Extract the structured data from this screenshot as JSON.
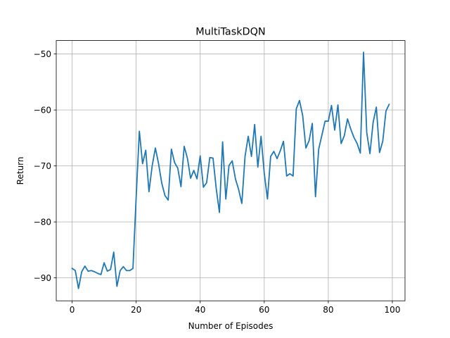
{
  "chart_data": {
    "type": "line",
    "title": "MultiTaskDQN",
    "xlabel": "Number of Episodes",
    "ylabel": "Return",
    "xlim": [
      -4.95,
      103.95
    ],
    "ylim": [
      -94.1,
      -47.6
    ],
    "xticks": [
      0,
      20,
      40,
      60,
      80,
      100
    ],
    "yticks": [
      -90,
      -80,
      -70,
      -60,
      -50
    ],
    "grid": true,
    "line_color": "#1f77b4",
    "series": [
      {
        "x": [
          0,
          1,
          2,
          3,
          4,
          5,
          6,
          7,
          8,
          9,
          10,
          11,
          12,
          13,
          14,
          15,
          16,
          17,
          18,
          19,
          20,
          21,
          22,
          23,
          24,
          25,
          26,
          27,
          28,
          29,
          30,
          31,
          32,
          33,
          34,
          35,
          36,
          37,
          38,
          39,
          40,
          41,
          42,
          43,
          44,
          45,
          46,
          47,
          48,
          49,
          50,
          51,
          52,
          53,
          54,
          55,
          56,
          57,
          58,
          59,
          60,
          61,
          62,
          63,
          64,
          65,
          66,
          67,
          68,
          69,
          70,
          71,
          72,
          73,
          74,
          75,
          76,
          77,
          78,
          79,
          80,
          81,
          82,
          83,
          84,
          85,
          86,
          87,
          88,
          89,
          90,
          91,
          92,
          93,
          94,
          95,
          96,
          97,
          98,
          99
        ],
        "y": [
          -88.3,
          -88.7,
          -91.9,
          -88.9,
          -87.9,
          -88.8,
          -88.7,
          -88.9,
          -89.2,
          -89.4,
          -87.3,
          -88.8,
          -88.5,
          -85.4,
          -91.5,
          -88.7,
          -88.0,
          -88.7,
          -88.7,
          -88.3,
          -75.6,
          -63.8,
          -69.6,
          -67.2,
          -74.6,
          -70.0,
          -66.8,
          -69.6,
          -73.1,
          -75.3,
          -76.1,
          -67.0,
          -69.4,
          -70.4,
          -73.7,
          -66.5,
          -68.6,
          -72.2,
          -70.8,
          -72.3,
          -68.2,
          -73.8,
          -73.0,
          -68.5,
          -68.6,
          -74.0,
          -78.3,
          -65.7,
          -75.9,
          -69.9,
          -69.1,
          -72.3,
          -74.2,
          -76.7,
          -68.3,
          -64.7,
          -68.3,
          -62.6,
          -70.2,
          -64.7,
          -71.3,
          -75.9,
          -68.3,
          -67.4,
          -68.7,
          -67.3,
          -65.6,
          -71.8,
          -71.4,
          -71.8,
          -59.8,
          -58.3,
          -61.0,
          -66.8,
          -65.5,
          -62.4,
          -75.5,
          -67.0,
          -64.5,
          -62.0,
          -62.0,
          -59.2,
          -63.6,
          -59.1,
          -66.0,
          -64.6,
          -61.6,
          -63.4,
          -64.9,
          -66.0,
          -67.7,
          -49.7,
          -64.0,
          -67.8,
          -62.2,
          -59.5,
          -67.6,
          -65.6,
          -60.2,
          -59.0
        ]
      }
    ]
  }
}
